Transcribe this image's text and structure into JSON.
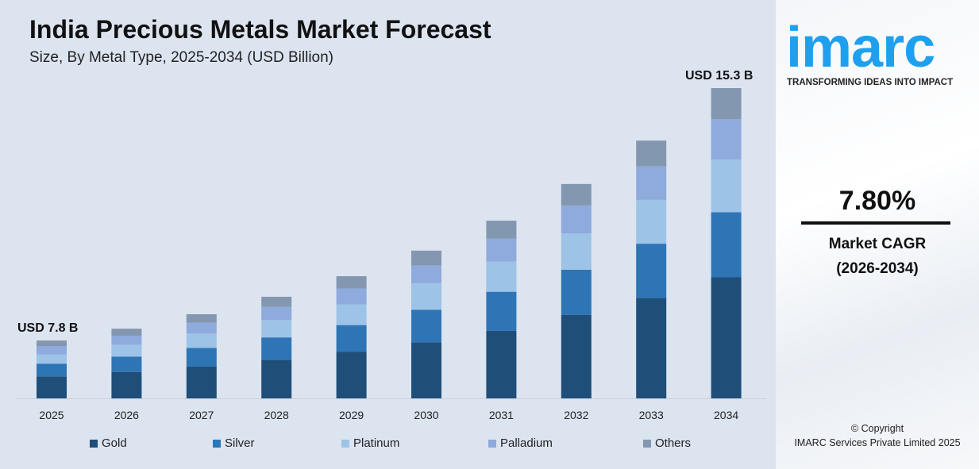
{
  "chart_data": {
    "type": "bar",
    "stacked": true,
    "title": "India Precious Metals Market Forecast",
    "subtitle": "Size, By Metal Type, 2025-2034 (USD Billion)",
    "categories": [
      "2025",
      "2026",
      "2027",
      "2028",
      "2029",
      "2030",
      "2031",
      "2032",
      "2033",
      "2034"
    ],
    "totals": [
      7.8,
      8.15,
      8.58,
      9.1,
      9.71,
      10.47,
      11.36,
      12.45,
      13.74,
      15.3
    ],
    "series": [
      {
        "name": "Gold",
        "color": "#1f4e79",
        "share_percent": [
          38,
          38,
          38,
          38,
          38,
          38,
          38,
          39,
          39,
          39
        ]
      },
      {
        "name": "Silver",
        "color": "#2e75b6",
        "share_percent": [
          22,
          22,
          22,
          22,
          22,
          22,
          22,
          21,
          21,
          21
        ]
      },
      {
        "name": "Platinum",
        "color": "#9dc3e6",
        "share_percent": [
          16,
          17,
          17,
          17,
          17,
          18,
          17,
          17,
          17,
          17
        ]
      },
      {
        "name": "Palladium",
        "color": "#8faadc",
        "share_percent": [
          14,
          13,
          13,
          13,
          13,
          12,
          13,
          13,
          13,
          13
        ]
      },
      {
        "name": "Others",
        "color": "#8497b0",
        "share_percent": [
          10,
          10,
          10,
          10,
          10,
          10,
          10,
          10,
          10,
          10
        ]
      }
    ],
    "annotations": {
      "first": "USD 7.8 B",
      "last": "USD 15.3 B"
    },
    "ylim": [
      6.08,
      15.3
    ],
    "y_axis_shown": false,
    "grid": false,
    "legend_position": "bottom"
  },
  "sidebar": {
    "logo": "imarc",
    "tagline": "TRANSFORMING IDEAS INTO IMPACT",
    "cagr_value": "7.80%",
    "cagr_label": "Market CAGR",
    "cagr_period": "(2026-2034)",
    "copyright": "© Copyright",
    "company": "IMARC Services Private Limited 2025",
    "brand_color": "#1ea0ef"
  }
}
